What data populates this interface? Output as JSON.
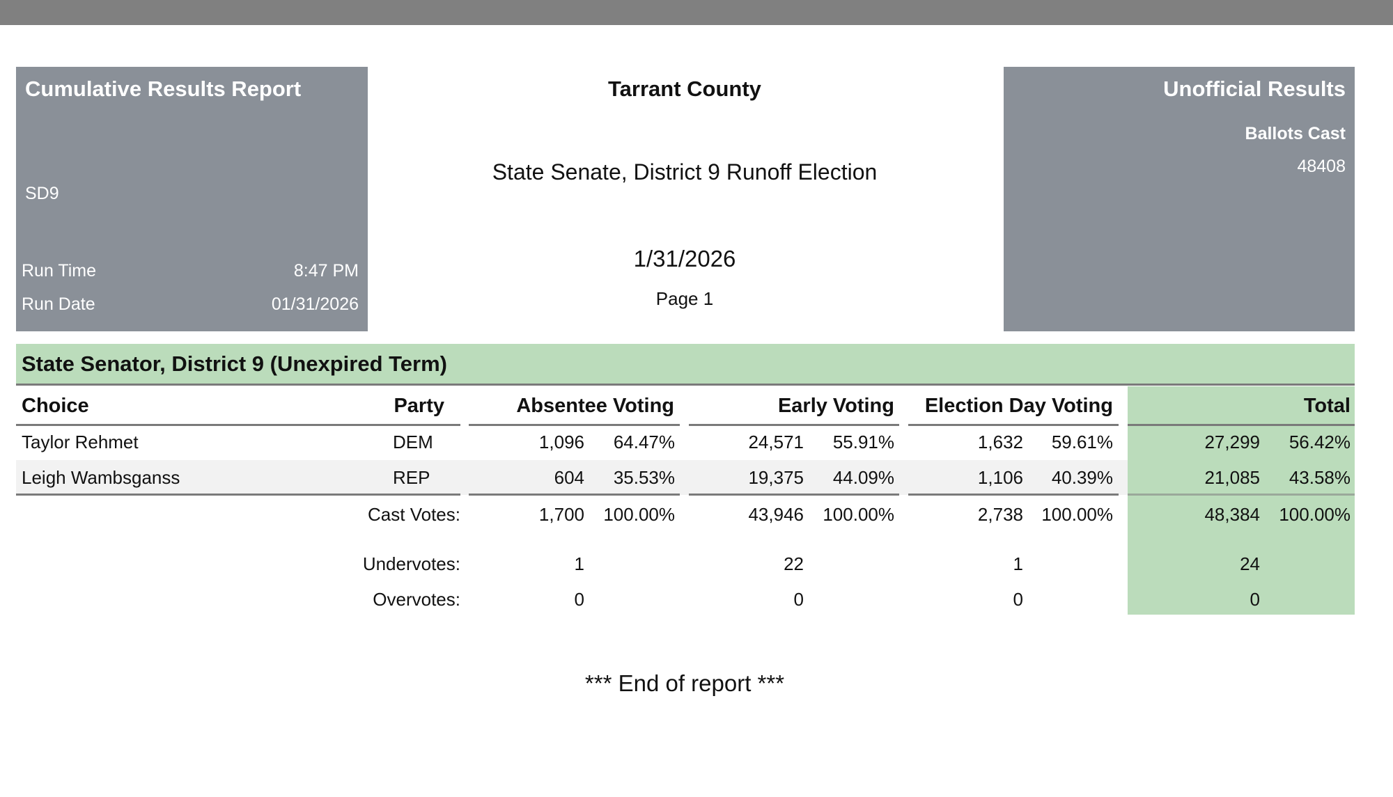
{
  "header": {
    "left": {
      "title": "Cumulative Results Report",
      "code": "SD9",
      "run_time_label": "Run Time",
      "run_time": "8:47 PM",
      "run_date_label": "Run Date",
      "run_date": "01/31/2026"
    },
    "center": {
      "county": "Tarrant County",
      "election": "State Senate, District 9 Runoff Election",
      "date": "1/31/2026",
      "page": "Page 1"
    },
    "right": {
      "title": "Unofficial Results",
      "ballots_cast_label": "Ballots Cast",
      "ballots_cast": "48408"
    }
  },
  "contest": {
    "title": "State Senator, District 9 (Unexpired Term)",
    "columns": [
      "Choice",
      "Party",
      "Absentee Voting",
      "Early Voting",
      "Election Day Voting",
      "Total"
    ],
    "rows": [
      [
        "Taylor Rehmet",
        "DEM",
        "1,096",
        "64.47%",
        "24,571",
        "55.91%",
        "1,632",
        "59.61%",
        "27,299",
        "56.42%"
      ],
      [
        "Leigh Wambsganss",
        "REP",
        "604",
        "35.53%",
        "19,375",
        "44.09%",
        "1,106",
        "40.39%",
        "21,085",
        "43.58%"
      ]
    ],
    "summary": [
      {
        "label": "Cast Votes:",
        "values": [
          "1,700",
          "100.00%",
          "43,946",
          "100.00%",
          "2,738",
          "100.00%",
          "48,384",
          "100.00%"
        ]
      },
      {
        "label": "Undervotes:",
        "values": [
          "1",
          "22",
          "1",
          "24"
        ]
      },
      {
        "label": "Overvotes:",
        "values": [
          "0",
          "0",
          "0",
          "0"
        ]
      }
    ]
  },
  "footer": "*** End of report ***"
}
